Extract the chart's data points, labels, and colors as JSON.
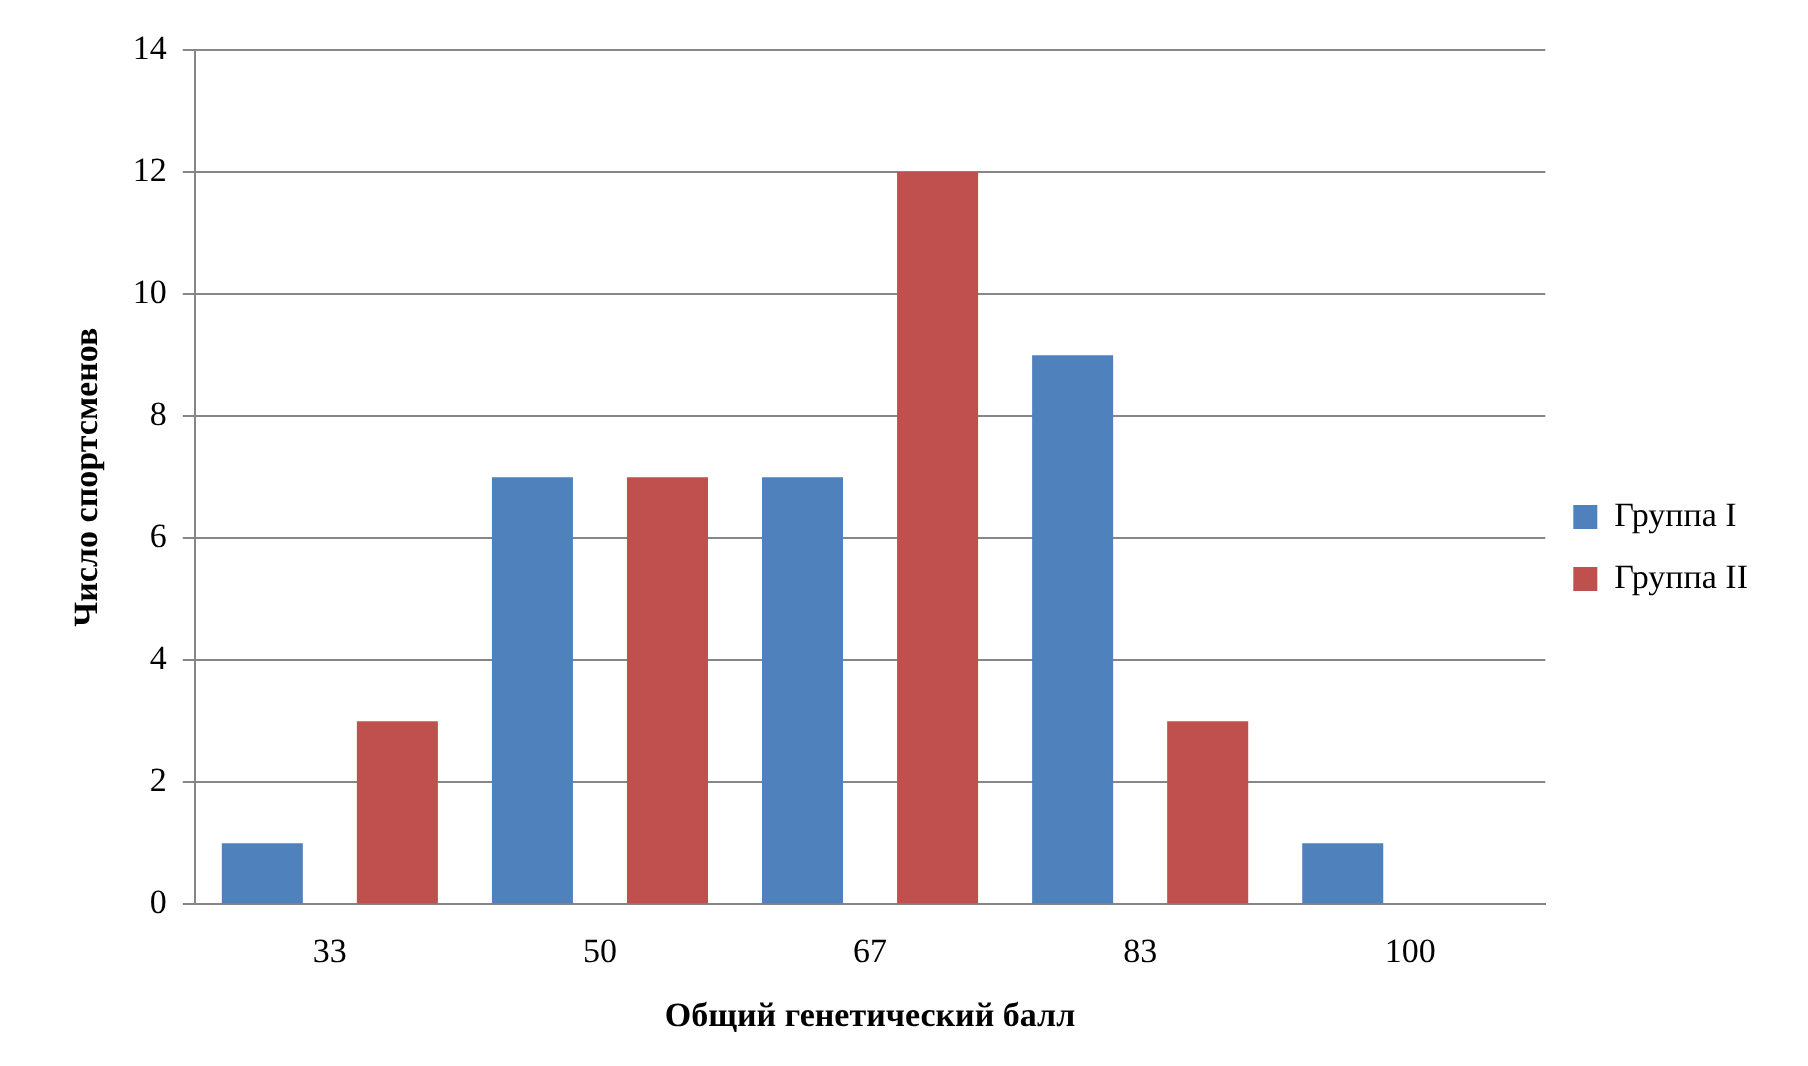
{
  "chart_data": {
    "type": "bar",
    "xlabel": "Общий генетический балл",
    "ylabel": "Число спортсменов",
    "categories": [
      "33",
      "50",
      "67",
      "83",
      "100"
    ],
    "series": [
      {
        "name": "Группа I",
        "color": "#4f81bd",
        "values": [
          1,
          7,
          7,
          9,
          1
        ]
      },
      {
        "name": "Группа II",
        "color": "#c0504d",
        "values": [
          3,
          7,
          12,
          3,
          0
        ]
      }
    ],
    "ylim": [
      0,
      14
    ],
    "yticks": [
      0,
      2,
      4,
      6,
      8,
      10,
      12,
      14
    ],
    "grid": "y",
    "legend": "right"
  }
}
